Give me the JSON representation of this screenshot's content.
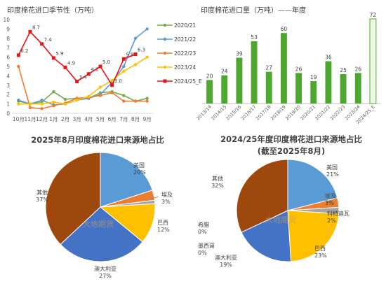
{
  "chart_data": [
    {
      "type": "line",
      "title": "印度棉花进口季节性（万吨）",
      "categories": [
        "10月",
        "11月",
        "12月",
        "1月",
        "2月",
        "3月",
        "4月",
        "5月",
        "6月",
        "7月",
        "8月",
        "9月"
      ],
      "ylim": [
        0,
        10
      ],
      "yticks": [
        0,
        1,
        2,
        3,
        4,
        5,
        6,
        7,
        8,
        9,
        10
      ],
      "series": [
        {
          "name": "2020/21",
          "color": "#70AD47",
          "values": [
            1.3,
            1.0,
            1.2,
            2.3,
            1.5,
            1.6,
            1.6,
            2.2,
            2.3,
            1.9,
            1.3,
            1.6
          ]
        },
        {
          "name": "2021/22",
          "color": "#5B9BD5",
          "values": [
            1.4,
            1.0,
            1.4,
            0.9,
            1.0,
            1.4,
            1.6,
            2.0,
            3.3,
            5.0,
            8.0,
            9.0
          ]
        },
        {
          "name": "2022/23",
          "color": "#ED7D31",
          "values": [
            5.0,
            0.6,
            0.5,
            0.8,
            1.1,
            1.6,
            1.7,
            1.9,
            2.2,
            1.3,
            1.3,
            1.3
          ]
        },
        {
          "name": "2023/24",
          "color": "#FFC000",
          "values": [
            1.0,
            1.0,
            1.0,
            1.2,
            1.0,
            1.4,
            1.8,
            2.8,
            3.5,
            4.5,
            5.2,
            6.0
          ]
        },
        {
          "name": "2024/25_E",
          "color": "#E81416",
          "values": [
            6.2,
            8.7,
            7.4,
            5.9,
            4.9,
            3.4,
            4.2,
            5.0,
            3.0,
            5.8,
            6.3,
            null
          ],
          "labels": [
            "6.2",
            "8.7",
            "7.4",
            "5.9",
            "4.9",
            "3.4",
            "4.2",
            "5.0",
            "3.0",
            "5.8",
            "6.3",
            ""
          ]
        }
      ]
    },
    {
      "type": "bar",
      "title": "印度棉花进口量（万吨）——年度",
      "categories": [
        "2013/14",
        "2014/15",
        "2015/16",
        "2016/17",
        "2017/18",
        "2018/19",
        "2019/20",
        "2020/21",
        "2021/22",
        "2022/23",
        "2023/24",
        "2024/25_E"
      ],
      "values": [
        20,
        24,
        39,
        53,
        27,
        60,
        26,
        19,
        36,
        25,
        26,
        72
      ],
      "ylim": [
        0,
        75
      ],
      "color": "#4EA72E",
      "estimate_index": 11
    },
    {
      "type": "pie",
      "title": "2025年8月印度棉花进口来源地占比",
      "slices": [
        {
          "label": "美国",
          "value": 20,
          "pct": "20%",
          "color": "#5B9BD5"
        },
        {
          "label": "埃及",
          "value": 3,
          "pct": "3%",
          "color": "#ED7D31"
        },
        {
          "label": "",
          "value": 1,
          "pct": "",
          "color": "#A5A5A5"
        },
        {
          "label": "巴西",
          "value": 12,
          "pct": "12%",
          "color": "#FFC000"
        },
        {
          "label": "澳大利亚",
          "value": 27,
          "pct": "27%",
          "color": "#4472C4"
        },
        {
          "label": "其他",
          "value": 37,
          "pct": "37%",
          "color": "#9E480E"
        }
      ]
    },
    {
      "type": "pie",
      "title": "2024/25年度印度棉花进口来源地占比",
      "subtitle": "(截至2025年8月)",
      "slices": [
        {
          "label": "美国",
          "value": 21,
          "pct": "21%",
          "color": "#5B9BD5"
        },
        {
          "label": "埃及",
          "value": 3,
          "pct": "3%",
          "color": "#ED7D31"
        },
        {
          "label": "科特迪瓦",
          "value": 2,
          "pct": "2%",
          "color": "#A5A5A5"
        },
        {
          "label": "巴西",
          "value": 23,
          "pct": "23%",
          "color": "#FFC000"
        },
        {
          "label": "澳大利亚",
          "value": 19,
          "pct": "19%",
          "color": "#4472C4"
        },
        {
          "label": "墨西哥",
          "value": 0,
          "pct": "0%",
          "color": "#264478"
        },
        {
          "label": "希腊",
          "value": 0,
          "pct": "0%",
          "color": "#636363"
        },
        {
          "label": "其他",
          "value": 32,
          "pct": "32%",
          "color": "#9E480E"
        }
      ]
    }
  ],
  "watermark": {
    "cn": "大地期货",
    "en": "DADI FUTURES"
  }
}
